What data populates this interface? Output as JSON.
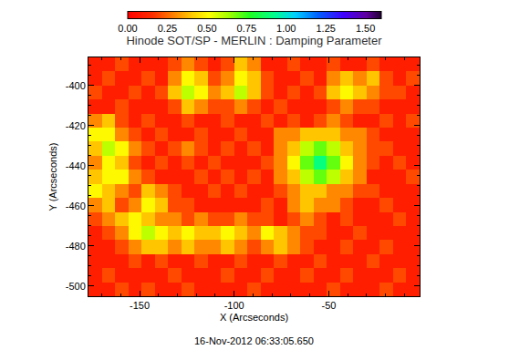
{
  "chart_data": {
    "type": "heatmap",
    "title": "Hinode SOT/SP - MERLIN : Damping Parameter",
    "x_label": "X (Arcseconds)",
    "y_label": "Y (Arcseconds)",
    "annotations": [
      "16-Nov-2012 06:33:05.650"
    ],
    "xlim": [
      -177,
      -2
    ],
    "ylim": [
      -505,
      -386
    ],
    "xticks": [
      -150,
      -100,
      -50
    ],
    "yticks": [
      -400,
      -420,
      -440,
      -460,
      -480,
      -500
    ],
    "x": [
      -173.5,
      -166.5,
      -159.5,
      -152.5,
      -145.5,
      -138.5,
      -131.5,
      -124.5,
      -117.5,
      -110.5,
      -103.5,
      -96.5,
      -89.5,
      -82.5,
      -75.5,
      -68.5,
      -61.5,
      -54.5,
      -47.5,
      -40.5,
      -33.5,
      -26.5,
      -19.5,
      -12.5,
      -5.5
    ],
    "y": [
      -389.5,
      -396.5,
      -403.5,
      -410.5,
      -417.5,
      -424.5,
      -431.5,
      -438.5,
      -445.5,
      -452.5,
      -459.5,
      -466.5,
      -473.5,
      -480.5,
      -487.5,
      -494.5,
      -501.5
    ],
    "cells": [
      [
        0.1,
        0.1,
        0.2,
        0.1,
        0.1,
        0.1,
        0.2,
        0.3,
        0.2,
        0.1,
        0.2,
        0.4,
        0.3,
        0.1,
        0.1,
        0.2,
        0.1,
        0.1,
        0.2,
        0.1,
        0.1,
        0.2,
        0.1,
        0.1,
        0.1
      ],
      [
        0.1,
        0.2,
        0.1,
        0.1,
        0.2,
        0.1,
        0.3,
        0.5,
        0.4,
        0.2,
        0.3,
        0.5,
        0.4,
        0.2,
        0.1,
        0.1,
        0.2,
        0.1,
        0.3,
        0.4,
        0.3,
        0.4,
        0.2,
        0.1,
        0.2
      ],
      [
        0.2,
        0.1,
        0.1,
        0.2,
        0.1,
        0.2,
        0.4,
        0.6,
        0.5,
        0.3,
        0.4,
        0.6,
        0.4,
        0.2,
        0.1,
        0.2,
        0.1,
        0.2,
        0.4,
        0.5,
        0.4,
        0.3,
        0.2,
        0.2,
        0.1
      ],
      [
        0.1,
        0.1,
        0.2,
        0.1,
        0.1,
        0.1,
        0.2,
        0.4,
        0.3,
        0.2,
        0.2,
        0.3,
        0.2,
        0.1,
        0.2,
        0.1,
        0.1,
        0.1,
        0.2,
        0.3,
        0.2,
        0.2,
        0.1,
        0.1,
        0.1
      ],
      [
        0.3,
        0.4,
        0.2,
        0.1,
        0.2,
        0.1,
        0.1,
        0.2,
        0.1,
        0.1,
        0.2,
        0.1,
        0.1,
        0.2,
        0.1,
        0.2,
        0.1,
        0.2,
        0.3,
        0.2,
        0.1,
        0.1,
        0.2,
        0.1,
        0.2
      ],
      [
        0.5,
        0.5,
        0.3,
        0.2,
        0.1,
        0.2,
        0.1,
        0.1,
        0.2,
        0.1,
        0.1,
        0.2,
        0.1,
        0.1,
        0.3,
        0.3,
        0.4,
        0.4,
        0.4,
        0.3,
        0.3,
        0.2,
        0.1,
        0.1,
        0.1
      ],
      [
        0.4,
        0.6,
        0.5,
        0.3,
        0.2,
        0.1,
        0.2,
        0.3,
        0.2,
        0.1,
        0.2,
        0.1,
        0.2,
        0.1,
        0.3,
        0.4,
        0.6,
        0.7,
        0.6,
        0.4,
        0.3,
        0.2,
        0.2,
        0.1,
        0.1
      ],
      [
        0.3,
        0.5,
        0.4,
        0.2,
        0.1,
        0.2,
        0.1,
        0.2,
        0.1,
        0.2,
        0.1,
        0.1,
        0.1,
        0.2,
        0.3,
        0.5,
        0.7,
        0.9,
        0.7,
        0.5,
        0.3,
        0.2,
        0.1,
        0.2,
        0.1
      ],
      [
        0.4,
        0.5,
        0.5,
        0.3,
        0.2,
        0.1,
        0.1,
        0.1,
        0.2,
        0.1,
        0.2,
        0.1,
        0.2,
        0.1,
        0.3,
        0.4,
        0.6,
        0.7,
        0.6,
        0.4,
        0.3,
        0.1,
        0.1,
        0.1,
        0.2
      ],
      [
        0.5,
        0.4,
        0.3,
        0.2,
        0.4,
        0.3,
        0.2,
        0.1,
        0.1,
        0.2,
        0.1,
        0.2,
        0.1,
        0.1,
        0.2,
        0.3,
        0.4,
        0.4,
        0.3,
        0.3,
        0.2,
        0.2,
        0.1,
        0.1,
        0.1
      ],
      [
        0.3,
        0.4,
        0.2,
        0.3,
        0.5,
        0.4,
        0.2,
        0.2,
        0.1,
        0.1,
        0.1,
        0.1,
        0.1,
        0.2,
        0.1,
        0.3,
        0.4,
        0.3,
        0.3,
        0.2,
        0.1,
        0.1,
        0.2,
        0.1,
        0.1
      ],
      [
        0.2,
        0.3,
        0.4,
        0.5,
        0.4,
        0.3,
        0.3,
        0.2,
        0.3,
        0.2,
        0.2,
        0.3,
        0.2,
        0.2,
        0.1,
        0.2,
        0.3,
        0.2,
        0.1,
        0.2,
        0.1,
        0.1,
        0.1,
        0.2,
        0.1
      ],
      [
        0.1,
        0.2,
        0.3,
        0.5,
        0.6,
        0.5,
        0.4,
        0.5,
        0.4,
        0.4,
        0.5,
        0.4,
        0.3,
        0.5,
        0.4,
        0.3,
        0.2,
        0.2,
        0.1,
        0.1,
        0.2,
        0.1,
        0.1,
        0.1,
        0.1
      ],
      [
        0.1,
        0.1,
        0.2,
        0.3,
        0.4,
        0.4,
        0.3,
        0.4,
        0.3,
        0.3,
        0.4,
        0.3,
        0.2,
        0.3,
        0.4,
        0.3,
        0.2,
        0.1,
        0.1,
        0.2,
        0.1,
        0.1,
        0.2,
        0.1,
        0.1
      ],
      [
        0.1,
        0.1,
        0.1,
        0.2,
        0.1,
        0.2,
        0.1,
        0.1,
        0.2,
        0.1,
        0.1,
        0.2,
        0.1,
        0.1,
        0.2,
        0.1,
        0.1,
        0.2,
        0.1,
        0.1,
        0.1,
        0.2,
        0.1,
        0.1,
        0.1
      ],
      [
        0.1,
        0.2,
        0.1,
        0.1,
        0.1,
        0.1,
        0.2,
        0.1,
        0.1,
        0.1,
        0.2,
        0.1,
        0.1,
        0.2,
        0.1,
        0.1,
        0.2,
        0.1,
        0.1,
        0.2,
        0.1,
        0.1,
        0.1,
        0.2,
        0.1
      ],
      [
        0.1,
        0.1,
        0.2,
        0.1,
        0.2,
        0.1,
        0.1,
        0.2,
        0.1,
        0.1,
        0.1,
        0.1,
        0.2,
        0.1,
        0.1,
        0.1,
        0.1,
        0.1,
        0.2,
        0.1,
        0.1,
        0.1,
        0.2,
        0.1,
        0.1
      ]
    ],
    "colorbar": {
      "range": [
        0,
        1.6
      ],
      "ticks": [
        {
          "value": 0,
          "label": "0.00"
        },
        {
          "value": 0.25,
          "label": "0.25"
        },
        {
          "value": 0.5,
          "label": "0.50"
        },
        {
          "value": 0.75,
          "label": "0.75"
        },
        {
          "value": 1,
          "label": "1.00"
        },
        {
          "value": 1.25,
          "label": "1.25"
        },
        {
          "value": 1.5,
          "label": "1.50"
        }
      ]
    }
  }
}
